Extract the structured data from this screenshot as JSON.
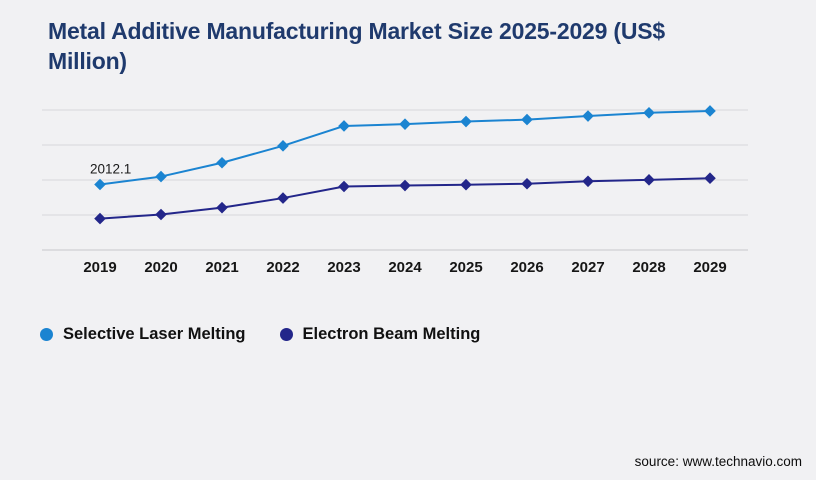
{
  "title": {
    "text": "Metal Additive Manufacturing Market Size 2025-2029 (US$ Million)",
    "lines": [
      "Metal Additive Manufacturing Market Size 2025-2029 (US$",
      "Million)"
    ]
  },
  "legend": [
    {
      "label": "Selective Laser Melting",
      "color": "#1b84d1"
    },
    {
      "label": "Electron Beam Melting",
      "color": "#23268a"
    }
  ],
  "source": "source: www.technavio.com",
  "colors": {
    "background": "#f1f1f3",
    "title": "#1f3a6d",
    "gridline": "#d8d8db",
    "axis_line": "#c7c7cb",
    "axis_text": "#161616",
    "annotation_text": "#1a1a1a"
  },
  "chart_data": {
    "type": "line",
    "title": "Metal Additive Manufacturing Market Size 2025-2029 (US$ Million)",
    "categories": [
      "2019",
      "2020",
      "2021",
      "2022",
      "2023",
      "2024",
      "2025",
      "2026",
      "2027",
      "2028",
      "2029"
    ],
    "series": [
      {
        "name": "Selective Laser Melting",
        "color": "#1b84d1",
        "marker": "diamond",
        "values": [
          2012.1,
          2255,
          2680,
          3200,
          3810,
          3865,
          3945,
          4005,
          4115,
          4215,
          4270
        ]
      },
      {
        "name": "Electron Beam Melting",
        "color": "#23268a",
        "marker": "diamond",
        "values": [
          965,
          1090,
          1300,
          1595,
          1950,
          1980,
          2005,
          2035,
          2110,
          2155,
          2205
        ]
      }
    ],
    "data_labels": [
      {
        "series": "Selective Laser Melting",
        "category": "2019",
        "label": "2012.1"
      }
    ],
    "xlabel": "",
    "ylabel": "",
    "ylim": [
      0,
      4300
    ],
    "grid": "horizontal",
    "y_axis_labels_visible": false,
    "legend_position": "bottom-left"
  }
}
